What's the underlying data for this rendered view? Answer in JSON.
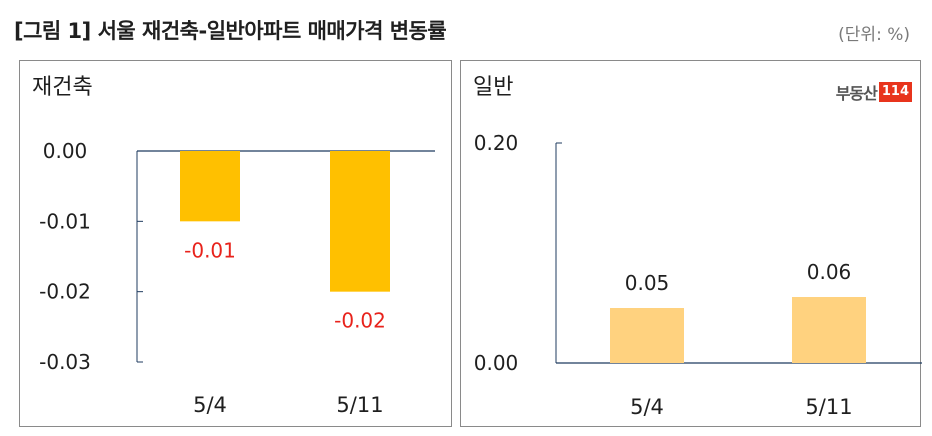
{
  "header": {
    "title": "[그림 1] 서울 재건축-일반아파트 매매가격 변동률",
    "unit": "(단위: %)"
  },
  "logo": {
    "text": "부동산",
    "number": "114"
  },
  "colors": {
    "left_bar": "#FFC000",
    "right_bar": "#FFD27F",
    "negative_label": "#E8231C",
    "axis": "#1F3B5F"
  },
  "chart_data": [
    {
      "type": "bar",
      "title": "재건축",
      "categories": [
        "5/4",
        "5/11"
      ],
      "values": [
        -0.01,
        -0.02
      ],
      "data_labels": [
        "-0.01",
        "-0.02"
      ],
      "ylim": [
        -0.03,
        0.0
      ],
      "y_ticks": [
        "0.00",
        "-0.01",
        "-0.02",
        "-0.03"
      ],
      "xlabel": "",
      "ylabel": ""
    },
    {
      "type": "bar",
      "title": "일반",
      "categories": [
        "5/4",
        "5/11"
      ],
      "values": [
        0.05,
        0.06
      ],
      "data_labels": [
        "0.05",
        "0.06"
      ],
      "ylim": [
        0.0,
        0.2
      ],
      "y_ticks": [
        "0.20",
        "0.00"
      ],
      "xlabel": "",
      "ylabel": ""
    }
  ]
}
